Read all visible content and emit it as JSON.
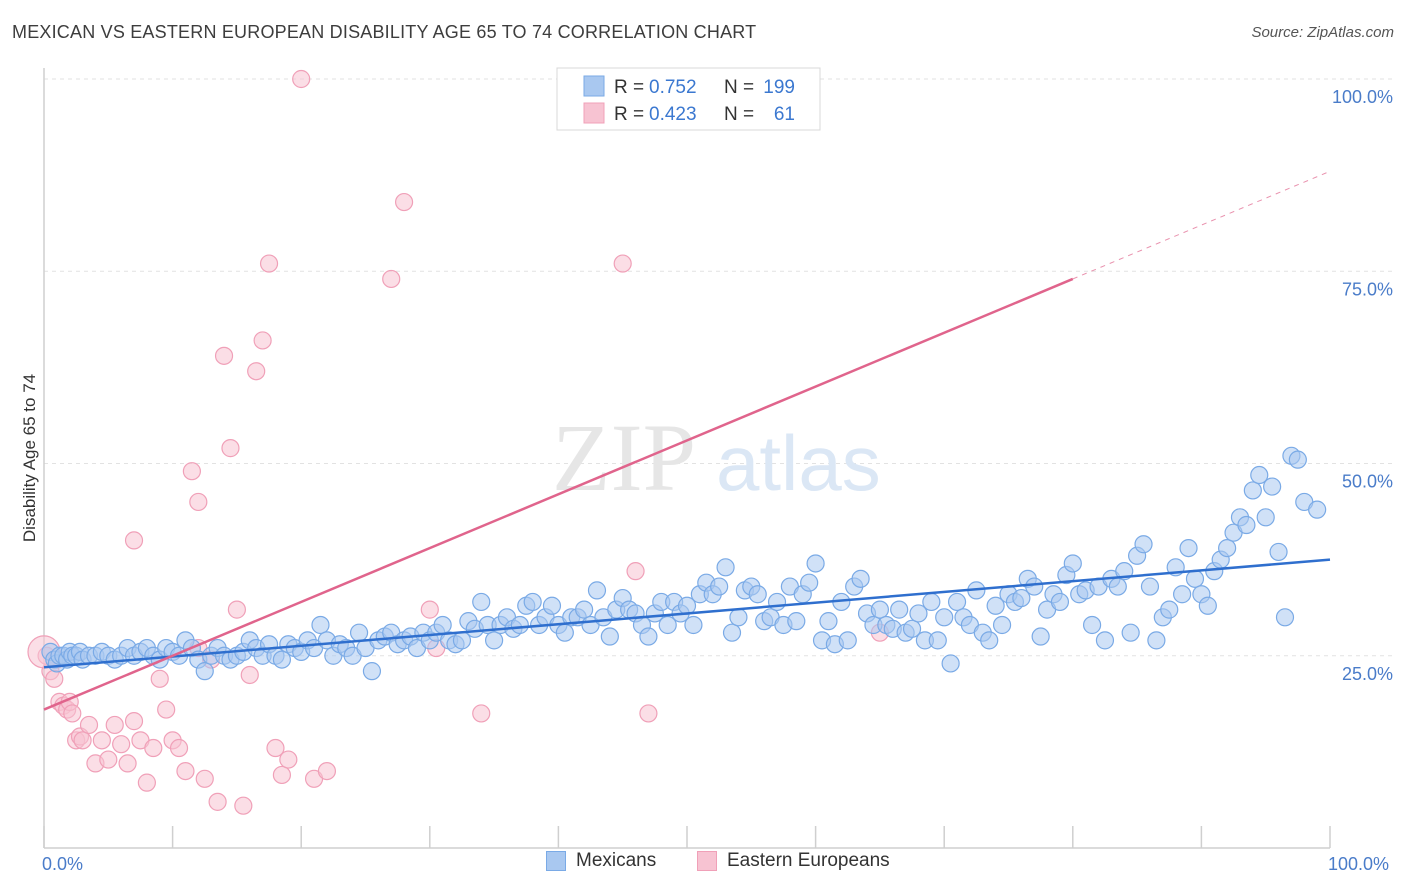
{
  "chart_data": {
    "type": "scatter",
    "title": "MEXICAN VS EASTERN EUROPEAN DISABILITY AGE 65 TO 74 CORRELATION CHART",
    "source": "Source: ZipAtlas.com",
    "ylabel": "Disability Age 65 to 74",
    "xlim": [
      0,
      100
    ],
    "ylim": [
      0,
      100
    ],
    "x_tick_labels": [
      "0.0%",
      "100.0%"
    ],
    "y_ticks": [
      25,
      50,
      75,
      100
    ],
    "y_tick_labels": [
      "25.0%",
      "50.0%",
      "75.0%",
      "100.0%"
    ],
    "grid": true,
    "legend_position": "top-center",
    "watermark": {
      "part1": "ZIP",
      "part2": "atlas"
    },
    "stats": [
      {
        "r_label": "R =",
        "r_value": "0.752",
        "n_label": "N =",
        "n_value": "199"
      },
      {
        "r_label": "R =",
        "r_value": "0.423",
        "n_label": "N =",
        "n_value": "61"
      }
    ],
    "series": [
      {
        "name": "Mexicans",
        "color": "#7aaae6",
        "fill": "#a9c8f0",
        "line_color": "#2f6fce",
        "trend": {
          "x0": 0,
          "y0": 23.5,
          "x1": 100,
          "y1": 37.5
        },
        "points": [
          [
            0.5,
            25.5
          ],
          [
            0.8,
            24.5
          ],
          [
            1,
            24
          ],
          [
            1.2,
            25
          ],
          [
            1.5,
            25
          ],
          [
            1.8,
            24.5
          ],
          [
            2,
            25.5
          ],
          [
            2.2,
            25
          ],
          [
            2.5,
            25
          ],
          [
            2.8,
            25.5
          ],
          [
            3,
            24.5
          ],
          [
            3.5,
            25
          ],
          [
            4,
            25
          ],
          [
            4.5,
            25.5
          ],
          [
            5,
            25
          ],
          [
            5.5,
            24.5
          ],
          [
            6,
            25
          ],
          [
            6.5,
            26
          ],
          [
            7,
            25
          ],
          [
            7.5,
            25.5
          ],
          [
            8,
            26
          ],
          [
            8.5,
            25
          ],
          [
            9,
            24.5
          ],
          [
            9.5,
            26
          ],
          [
            10,
            25.5
          ],
          [
            10.5,
            25
          ],
          [
            11,
            27
          ],
          [
            11.5,
            26
          ],
          [
            12,
            24.5
          ],
          [
            12.5,
            23
          ],
          [
            13,
            25
          ],
          [
            13.5,
            26
          ],
          [
            14,
            25
          ],
          [
            14.5,
            24.5
          ],
          [
            15,
            25
          ],
          [
            15.5,
            25.5
          ],
          [
            16,
            27
          ],
          [
            16.5,
            26
          ],
          [
            17,
            25
          ],
          [
            17.5,
            26.5
          ],
          [
            18,
            25
          ],
          [
            18.5,
            24.5
          ],
          [
            19,
            26.5
          ],
          [
            19.5,
            26
          ],
          [
            20,
            25.5
          ],
          [
            20.5,
            27
          ],
          [
            21,
            26
          ],
          [
            21.5,
            29
          ],
          [
            22,
            27
          ],
          [
            22.5,
            25
          ],
          [
            23,
            26.5
          ],
          [
            23.5,
            26
          ],
          [
            24,
            25
          ],
          [
            24.5,
            28
          ],
          [
            25,
            26
          ],
          [
            25.5,
            23
          ],
          [
            26,
            27
          ],
          [
            26.5,
            27.5
          ],
          [
            27,
            28
          ],
          [
            27.5,
            26.5
          ],
          [
            28,
            27
          ],
          [
            28.5,
            27.5
          ],
          [
            29,
            26
          ],
          [
            29.5,
            28
          ],
          [
            30,
            27
          ],
          [
            30.5,
            28
          ],
          [
            31,
            29
          ],
          [
            31.5,
            27
          ],
          [
            32,
            26.5
          ],
          [
            32.5,
            27
          ],
          [
            33,
            29.5
          ],
          [
            33.5,
            28.5
          ],
          [
            34,
            32
          ],
          [
            34.5,
            29
          ],
          [
            35,
            27
          ],
          [
            35.5,
            29
          ],
          [
            36,
            30
          ],
          [
            36.5,
            28.5
          ],
          [
            37,
            29
          ],
          [
            37.5,
            31.5
          ],
          [
            38,
            32
          ],
          [
            38.5,
            29
          ],
          [
            39,
            30
          ],
          [
            39.5,
            31.5
          ],
          [
            40,
            29
          ],
          [
            40.5,
            28
          ],
          [
            41,
            30
          ],
          [
            41.5,
            30
          ],
          [
            42,
            31
          ],
          [
            42.5,
            29
          ],
          [
            43,
            33.5
          ],
          [
            43.5,
            30
          ],
          [
            44,
            27.5
          ],
          [
            44.5,
            31
          ],
          [
            45,
            32.5
          ],
          [
            45.5,
            31
          ],
          [
            46,
            30.5
          ],
          [
            46.5,
            29
          ],
          [
            47,
            27.5
          ],
          [
            47.5,
            30.5
          ],
          [
            48,
            32
          ],
          [
            48.5,
            29
          ],
          [
            49,
            32
          ],
          [
            49.5,
            30.5
          ],
          [
            50,
            31.5
          ],
          [
            50.5,
            29
          ],
          [
            51,
            33
          ],
          [
            51.5,
            34.5
          ],
          [
            52,
            33
          ],
          [
            52.5,
            34
          ],
          [
            53,
            36.5
          ],
          [
            53.5,
            28
          ],
          [
            54,
            30
          ],
          [
            54.5,
            33.5
          ],
          [
            55,
            34
          ],
          [
            55.5,
            33
          ],
          [
            56,
            29.5
          ],
          [
            56.5,
            30
          ],
          [
            57,
            32
          ],
          [
            57.5,
            29
          ],
          [
            58,
            34
          ],
          [
            58.5,
            29.5
          ],
          [
            59,
            33
          ],
          [
            59.5,
            34.5
          ],
          [
            60,
            37
          ],
          [
            60.5,
            27
          ],
          [
            61,
            29.5
          ],
          [
            61.5,
            26.5
          ],
          [
            62,
            32
          ],
          [
            62.5,
            27
          ],
          [
            63,
            34
          ],
          [
            63.5,
            35
          ],
          [
            64,
            30.5
          ],
          [
            64.5,
            29
          ],
          [
            65,
            31
          ],
          [
            65.5,
            29
          ],
          [
            66,
            28.5
          ],
          [
            66.5,
            31
          ],
          [
            67,
            28
          ],
          [
            67.5,
            28.5
          ],
          [
            68,
            30.5
          ],
          [
            68.5,
            27
          ],
          [
            69,
            32
          ],
          [
            69.5,
            27
          ],
          [
            70,
            30
          ],
          [
            70.5,
            24
          ],
          [
            71,
            32
          ],
          [
            71.5,
            30
          ],
          [
            72,
            29
          ],
          [
            72.5,
            33.5
          ],
          [
            73,
            28
          ],
          [
            73.5,
            27
          ],
          [
            74,
            31.5
          ],
          [
            74.5,
            29
          ],
          [
            75,
            33
          ],
          [
            75.5,
            32
          ],
          [
            76,
            32.5
          ],
          [
            76.5,
            35
          ],
          [
            77,
            34
          ],
          [
            77.5,
            27.5
          ],
          [
            78,
            31
          ],
          [
            78.5,
            33
          ],
          [
            79,
            32
          ],
          [
            79.5,
            35.5
          ],
          [
            80,
            37
          ],
          [
            80.5,
            33
          ],
          [
            81,
            33.5
          ],
          [
            81.5,
            29
          ],
          [
            82,
            34
          ],
          [
            82.5,
            27
          ],
          [
            83,
            35
          ],
          [
            83.5,
            34
          ],
          [
            84,
            36
          ],
          [
            84.5,
            28
          ],
          [
            85,
            38
          ],
          [
            85.5,
            39.5
          ],
          [
            86,
            34
          ],
          [
            86.5,
            27
          ],
          [
            87,
            30
          ],
          [
            87.5,
            31
          ],
          [
            88,
            36.5
          ],
          [
            88.5,
            33
          ],
          [
            89,
            39
          ],
          [
            89.5,
            35
          ],
          [
            90,
            33
          ],
          [
            90.5,
            31.5
          ],
          [
            91,
            36
          ],
          [
            91.5,
            37.5
          ],
          [
            92,
            39
          ],
          [
            92.5,
            41
          ],
          [
            93,
            43
          ],
          [
            93.5,
            42
          ],
          [
            94,
            46.5
          ],
          [
            94.5,
            48.5
          ],
          [
            95,
            43
          ],
          [
            95.5,
            47
          ],
          [
            96,
            38.5
          ],
          [
            96.5,
            30
          ],
          [
            97,
            51
          ],
          [
            97.5,
            50.5
          ],
          [
            98,
            45
          ],
          [
            99,
            44
          ]
        ]
      },
      {
        "name": "Eastern Europeans",
        "color": "#f0a0b8",
        "fill": "#f7c3d2",
        "line_color": "#e0648c",
        "trend": {
          "x0": 0,
          "y0": 18,
          "x1": 80,
          "y1": 74
        },
        "trend_dashed": {
          "x0": 80,
          "y0": 74,
          "x1": 100,
          "y1": 88
        },
        "points": [
          [
            0.2,
            25
          ],
          [
            0.5,
            23
          ],
          [
            0.8,
            22
          ],
          [
            1,
            24.5
          ],
          [
            1.2,
            19
          ],
          [
            1.5,
            18.5
          ],
          [
            1.8,
            18
          ],
          [
            2,
            19
          ],
          [
            2.2,
            17.5
          ],
          [
            2.5,
            14
          ],
          [
            2.8,
            14.5
          ],
          [
            3,
            14
          ],
          [
            3.5,
            16
          ],
          [
            4,
            11
          ],
          [
            4.5,
            14
          ],
          [
            5,
            11.5
          ],
          [
            5.5,
            16
          ],
          [
            6,
            13.5
          ],
          [
            6.5,
            11
          ],
          [
            7,
            16.5
          ],
          [
            7.5,
            14
          ],
          [
            8,
            8.5
          ],
          [
            8.5,
            13
          ],
          [
            9,
            22
          ],
          [
            9.5,
            18
          ],
          [
            10,
            14
          ],
          [
            10.5,
            13
          ],
          [
            11,
            10
          ],
          [
            11.5,
            49
          ],
          [
            12,
            45
          ],
          [
            12.5,
            9
          ],
          [
            13,
            24.5
          ],
          [
            13.5,
            6
          ],
          [
            14,
            64
          ],
          [
            14.5,
            52
          ],
          [
            15,
            31
          ],
          [
            15.5,
            5.5
          ],
          [
            16,
            22.5
          ],
          [
            16.5,
            62
          ],
          [
            17,
            66
          ],
          [
            17.5,
            76
          ],
          [
            18,
            13
          ],
          [
            18.5,
            9.5
          ],
          [
            19,
            11.5
          ],
          [
            20,
            100
          ],
          [
            21,
            9
          ],
          [
            22,
            10
          ],
          [
            27,
            74
          ],
          [
            28,
            84
          ],
          [
            30,
            31
          ],
          [
            30.5,
            26
          ],
          [
            34,
            17.5
          ],
          [
            45,
            76
          ],
          [
            46,
            36
          ],
          [
            47,
            17.5
          ],
          [
            65,
            28
          ],
          [
            7,
            40
          ],
          [
            12,
            26
          ]
        ]
      }
    ]
  }
}
